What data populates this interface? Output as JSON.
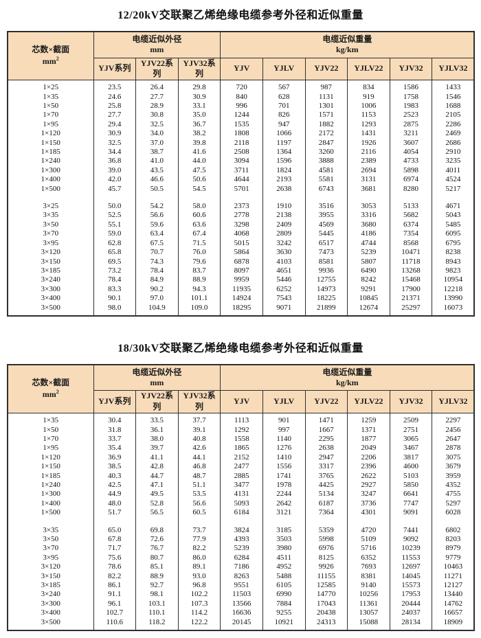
{
  "page": {
    "background": "#ffffff",
    "header_bg": "#f8dcba",
    "border_color": "#2e2e2e",
    "text_color": "#151515"
  },
  "tables": [
    {
      "title": "12/20kV交联聚乙烯绝缘电缆参考外径和近似重量",
      "header": {
        "spec_label": "芯数×截面",
        "spec_unit_base": "mm",
        "spec_unit_sup": "2",
        "od_group_label": "电缆近似外径",
        "od_group_unit": "mm",
        "weight_group_label": "电缆近似重量",
        "weight_group_unit": "kg/km",
        "od_columns": [
          "YJV系列",
          "YJV22系列",
          "YJV32系列"
        ],
        "weight_columns": [
          "YJV",
          "YJLV",
          "YJV22",
          "YJLV22",
          "YJV32",
          "YJLV32"
        ]
      },
      "groups": [
        {
          "rows": [
            [
              "1×25",
              "23.5",
              "26.4",
              "29.8",
              "720",
              "567",
              "987",
              "834",
              "1586",
              "1433"
            ],
            [
              "1×35",
              "24.6",
              "27.7",
              "30.9",
              "840",
              "628",
              "1131",
              "919",
              "1758",
              "1546"
            ],
            [
              "1×50",
              "25.8",
              "28.9",
              "33.1",
              "996",
              "701",
              "1301",
              "1006",
              "1983",
              "1688"
            ],
            [
              "1×70",
              "27.7",
              "30.8",
              "35.0",
              "1244",
              "826",
              "1571",
              "1153",
              "2523",
              "2105"
            ],
            [
              "1×95",
              "29.4",
              "32.5",
              "36.7",
              "1535",
              "947",
              "1882",
              "1293",
              "2875",
              "2286"
            ],
            [
              "1×120",
              "30.9",
              "34.0",
              "38.2",
              "1808",
              "1066",
              "2172",
              "1431",
              "3211",
              "2469"
            ],
            [
              "1×150",
              "32.5",
              "37.0",
              "39.8",
              "2118",
              "1197",
              "2847",
              "1926",
              "3607",
              "2686"
            ],
            [
              "1×185",
              "34.4",
              "38.7",
              "41.6",
              "2508",
              "1364",
              "3260",
              "2116",
              "4054",
              "2910"
            ],
            [
              "1×240",
              "36.8",
              "41.0",
              "44.0",
              "3094",
              "1596",
              "3888",
              "2389",
              "4733",
              "3235"
            ],
            [
              "1×300",
              "39.0",
              "43.5",
              "47.5",
              "3711",
              "1824",
              "4581",
              "2694",
              "5898",
              "4011"
            ],
            [
              "1×400",
              "42.0",
              "46.6",
              "50.6",
              "4644",
              "2193",
              "5581",
              "3131",
              "6974",
              "4524"
            ],
            [
              "1×500",
              "45.7",
              "50.5",
              "54.5",
              "5701",
              "2638",
              "6743",
              "3681",
              "8280",
              "5217"
            ]
          ]
        },
        {
          "rows": [
            [
              "3×25",
              "50.0",
              "54.2",
              "58.0",
              "2373",
              "1910",
              "3516",
              "3053",
              "5133",
              "4671"
            ],
            [
              "3×35",
              "52.5",
              "56.6",
              "60.6",
              "2778",
              "2138",
              "3955",
              "3316",
              "5682",
              "5043"
            ],
            [
              "3×50",
              "55.1",
              "59.6",
              "63.6",
              "3298",
              "2409",
              "4569",
              "3680",
              "6374",
              "5485"
            ],
            [
              "3×70",
              "59.0",
              "63.4",
              "67.4",
              "4068",
              "2809",
              "5445",
              "4186",
              "7354",
              "6095"
            ],
            [
              "3×95",
              "62.8",
              "67.5",
              "71.5",
              "5015",
              "3242",
              "6517",
              "4744",
              "8568",
              "6795"
            ],
            [
              "3×120",
              "65.8",
              "70.7",
              "76.0",
              "5864",
              "3630",
              "7473",
              "5239",
              "10471",
              "8238"
            ],
            [
              "3×150",
              "69.5",
              "74.3",
              "79.6",
              "6878",
              "4103",
              "8581",
              "5807",
              "11718",
              "8943"
            ],
            [
              "3×185",
              "73.2",
              "78.4",
              "83.7",
              "8097",
              "4651",
              "9936",
              "6490",
              "13268",
              "9823"
            ],
            [
              "3×240",
              "78.4",
              "84.9",
              "88.9",
              "9959",
              "5446",
              "12755",
              "8242",
              "15468",
              "10954"
            ],
            [
              "3×300",
              "83.3",
              "90.2",
              "94.3",
              "11935",
              "6252",
              "14973",
              "9291",
              "17900",
              "12218"
            ],
            [
              "3×400",
              "90.1",
              "97.0",
              "101.1",
              "14924",
              "7543",
              "18225",
              "10845",
              "21371",
              "13990"
            ],
            [
              "3×500",
              "98.0",
              "104.9",
              "109.0",
              "18295",
              "9071",
              "21899",
              "12674",
              "25297",
              "16073"
            ]
          ]
        }
      ]
    },
    {
      "title": "18/30kV交联聚乙烯绝缘电缆参考外径和近似重量",
      "header": {
        "spec_label": "芯数×截面",
        "spec_unit_base": "mm",
        "spec_unit_sup": "2",
        "od_group_label": "电缆近似外径",
        "od_group_unit": "mm",
        "weight_group_label": "电缆近似重量",
        "weight_group_unit": "kg/km",
        "od_columns": [
          "YJV系列",
          "YJV22系列",
          "YJV32系列"
        ],
        "weight_columns": [
          "YJV",
          "YJLV",
          "YJV22",
          "YJLV22",
          "YJV32",
          "YJLV32"
        ]
      },
      "groups": [
        {
          "rows": [
            [
              "1×35",
              "30.4",
              "33.5",
              "37.7",
              "1113",
              "901",
              "1471",
              "1259",
              "2509",
              "2297"
            ],
            [
              "1×50",
              "31.8",
              "36.1",
              "39.1",
              "1292",
              "997",
              "1667",
              "1371",
              "2751",
              "2456"
            ],
            [
              "1×70",
              "33.7",
              "38.0",
              "40.8",
              "1558",
              "1140",
              "2295",
              "1877",
              "3065",
              "2647"
            ],
            [
              "1×95",
              "35.4",
              "39.7",
              "42.6",
              "1865",
              "1276",
              "2638",
              "2049",
              "3467",
              "2878"
            ],
            [
              "1×120",
              "36.9",
              "41.1",
              "44.1",
              "2152",
              "1410",
              "2947",
              "2206",
              "3817",
              "3075"
            ],
            [
              "1×150",
              "38.5",
              "42.8",
              "46.8",
              "2477",
              "1556",
              "3317",
              "2396",
              "4600",
              "3679"
            ],
            [
              "1×185",
              "40.3",
              "44.7",
              "48.7",
              "2885",
              "1741",
              "3765",
              "2622",
              "5103",
              "3959"
            ],
            [
              "1×240",
              "42.5",
              "47.1",
              "51.1",
              "3477",
              "1978",
              "4425",
              "2927",
              "5850",
              "4352"
            ],
            [
              "1×300",
              "44.9",
              "49.5",
              "53.5",
              "4131",
              "2244",
              "5134",
              "3247",
              "6641",
              "4755"
            ],
            [
              "1×400",
              "48.0",
              "52.8",
              "56.6",
              "5093",
              "2642",
              "6187",
              "3736",
              "7747",
              "5297"
            ],
            [
              "1×500",
              "51.7",
              "56.5",
              "60.5",
              "6184",
              "3121",
              "7364",
              "4301",
              "9091",
              "6028"
            ]
          ]
        },
        {
          "rows": [
            [
              "3×35",
              "65.0",
              "69.8",
              "73.7",
              "3824",
              "3185",
              "5359",
              "4720",
              "7441",
              "6802"
            ],
            [
              "3×50",
              "67.8",
              "72.6",
              "77.9",
              "4393",
              "3503",
              "5998",
              "5109",
              "9092",
              "8203"
            ],
            [
              "3×70",
              "71.7",
              "76.7",
              "82.2",
              "5239",
              "3980",
              "6976",
              "5716",
              "10239",
              "8979"
            ],
            [
              "3×95",
              "75.6",
              "80.7",
              "86.0",
              "6284",
              "4511",
              "8125",
              "6352",
              "11553",
              "9779"
            ],
            [
              "3×120",
              "78.6",
              "85.1",
              "89.1",
              "7186",
              "4952",
              "9926",
              "7693",
              "12697",
              "10463"
            ],
            [
              "3×150",
              "82.2",
              "88.9",
              "93.0",
              "8263",
              "5488",
              "11155",
              "8381",
              "14045",
              "11271"
            ],
            [
              "3×185",
              "86.1",
              "92.7",
              "96.8",
              "9551",
              "6105",
              "12585",
              "9140",
              "15573",
              "12127"
            ],
            [
              "3×240",
              "91.1",
              "98.1",
              "102.2",
              "11503",
              "6990",
              "14770",
              "10256",
              "17953",
              "13440"
            ],
            [
              "3×300",
              "96.1",
              "103.1",
              "107.3",
              "13566",
              "7884",
              "17043",
              "11361",
              "20444",
              "14762"
            ],
            [
              "3×400",
              "102.7",
              "110.1",
              "114.2",
              "16636",
              "9255",
              "20438",
              "13057",
              "24037",
              "16657"
            ],
            [
              "3×500",
              "110.6",
              "118.2",
              "122.2",
              "20145",
              "10921",
              "24313",
              "15088",
              "28134",
              "18909"
            ]
          ]
        }
      ]
    }
  ]
}
